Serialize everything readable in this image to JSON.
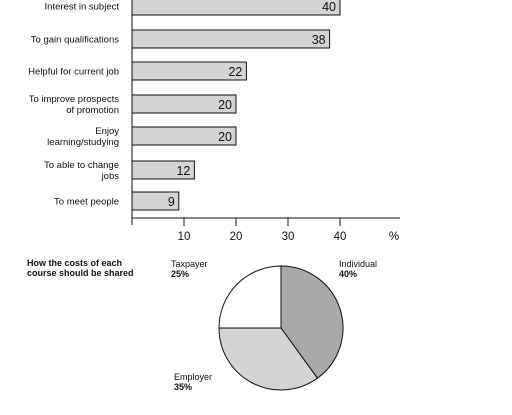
{
  "chart_data": [
    {
      "type": "bar",
      "orientation": "horizontal",
      "categories": [
        [
          "Interest in subject"
        ],
        [
          "To gain qualifications"
        ],
        [
          "Helpful for current job"
        ],
        [
          "To improve prospects",
          "of promotion"
        ],
        [
          "Enjoy",
          "learning/studying"
        ],
        [
          "To able to change",
          "jobs"
        ],
        [
          "To meet people"
        ]
      ],
      "values": [
        40,
        38,
        22,
        20,
        20,
        12,
        9
      ],
      "x_ticks": [
        "10",
        "20",
        "30",
        "40"
      ],
      "x_unit": "%",
      "xlim": [
        0,
        50
      ],
      "data_labels": true,
      "grid": false,
      "bar_color": "#d4d4d4"
    },
    {
      "type": "pie",
      "title": [
        "How the costs of each",
        "course should be shared"
      ],
      "slices": [
        {
          "label": "Individual",
          "value": 40,
          "value_label": "40%",
          "color": "#a9a9a9"
        },
        {
          "label": "Employer",
          "value": 35,
          "value_label": "35%",
          "color": "#d4d4d4"
        },
        {
          "label": "Taxpayer",
          "value": 25,
          "value_label": "25%",
          "color": "#ffffff"
        }
      ]
    }
  ]
}
